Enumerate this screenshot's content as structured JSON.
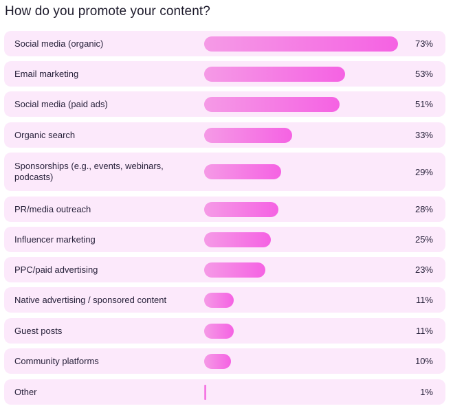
{
  "chart_data": {
    "type": "bar",
    "orientation": "horizontal",
    "title": "How do you promote your content?",
    "categories": [
      "Social media (organic)",
      "Email marketing",
      "Social media (paid ads)",
      "Organic search",
      "Sponsorships (e.g., events, webinars, podcasts)",
      "PR/media outreach",
      "Influencer marketing",
      "PPC/paid advertising",
      "Native advertising / sponsored content",
      "Guest posts",
      "Community platforms",
      "Other"
    ],
    "values": [
      73,
      53,
      51,
      33,
      29,
      28,
      25,
      23,
      11,
      11,
      10,
      1
    ],
    "value_labels": [
      "73%",
      "53%",
      "51%",
      "33%",
      "29%",
      "28%",
      "25%",
      "23%",
      "11%",
      "11%",
      "10%",
      "1%"
    ],
    "unit": "%",
    "xlim": [
      0,
      75
    ],
    "colors": {
      "bar_start": "#f59ae6",
      "bar_end": "#f562e3",
      "row_background": "#fce9fb"
    }
  }
}
